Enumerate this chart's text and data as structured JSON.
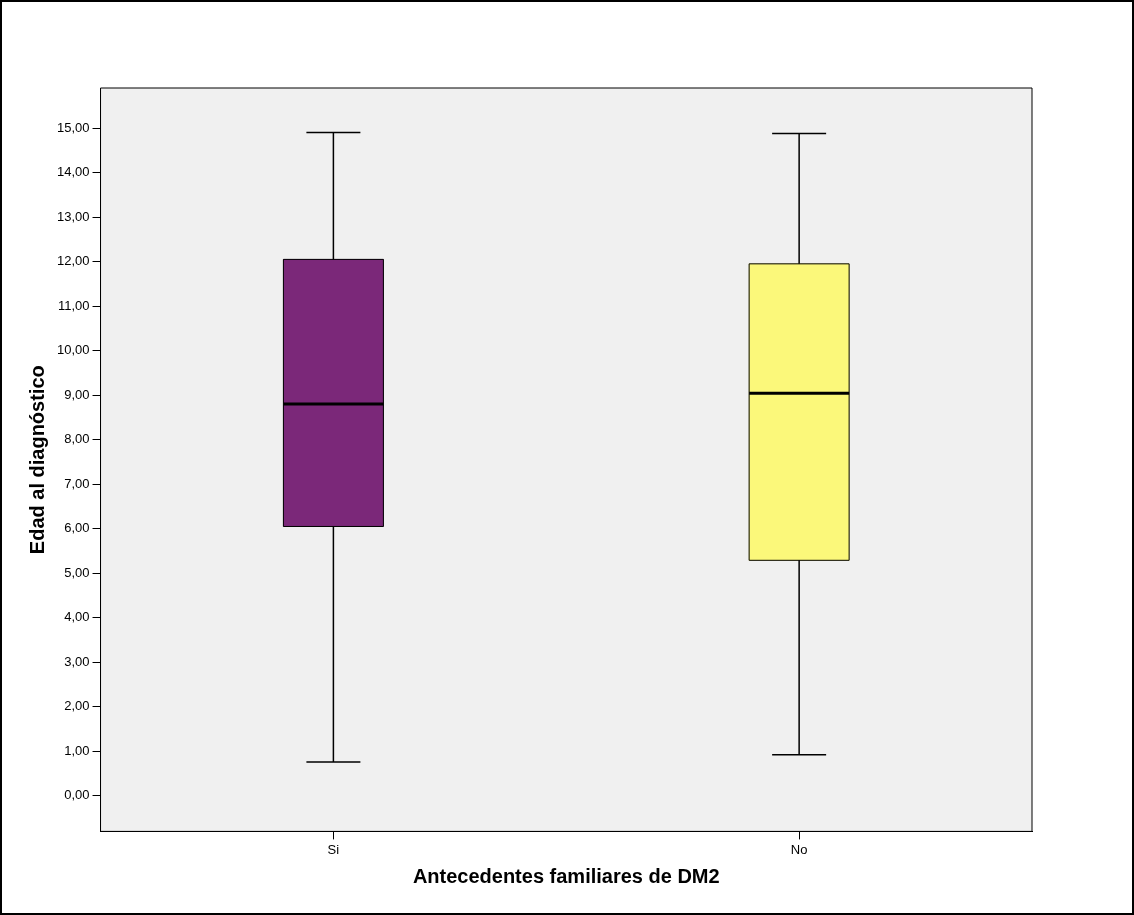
{
  "chart_data": {
    "type": "box",
    "xlabel": "Antecedentes familiares de DM2",
    "ylabel": "Edad al diagnóstico",
    "categories": [
      "Si",
      "No"
    ],
    "colors": [
      "#7b2879",
      "#fbf87a"
    ],
    "boxes": [
      {
        "low": 0.76,
        "q1": 6.05,
        "median": 8.8,
        "q3": 12.05,
        "high": 14.9
      },
      {
        "low": 0.92,
        "q1": 5.29,
        "median": 9.04,
        "q3": 11.95,
        "high": 14.88
      }
    ],
    "ylim": [
      -0.8,
      15.9
    ],
    "yticks": [
      {
        "value": 0,
        "label": "0,00"
      },
      {
        "value": 1,
        "label": "1,00"
      },
      {
        "value": 2,
        "label": "2,00"
      },
      {
        "value": 3,
        "label": "3,00"
      },
      {
        "value": 4,
        "label": "4,00"
      },
      {
        "value": 5,
        "label": "5,00"
      },
      {
        "value": 6,
        "label": "6,00"
      },
      {
        "value": 7,
        "label": "7,00"
      },
      {
        "value": 8,
        "label": "8,00"
      },
      {
        "value": 9,
        "label": "9,00"
      },
      {
        "value": 10,
        "label": "10,00"
      },
      {
        "value": 11,
        "label": "11,00"
      },
      {
        "value": 12,
        "label": "12,00"
      },
      {
        "value": 13,
        "label": "13,00"
      },
      {
        "value": 14,
        "label": "14,00"
      },
      {
        "value": 15,
        "label": "15,00"
      }
    ],
    "grid": false
  }
}
